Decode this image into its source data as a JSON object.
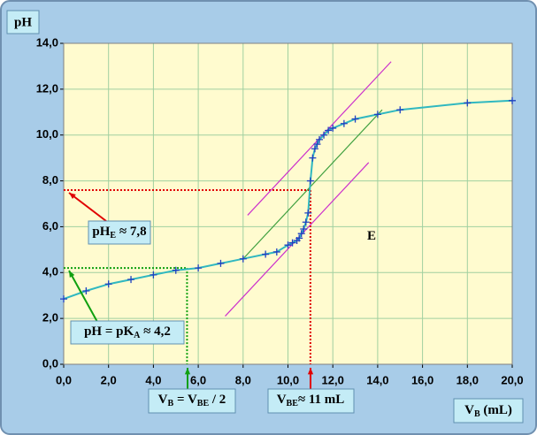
{
  "chart_data": {
    "type": "line",
    "y_label": "pH",
    "x_label": {
      "main": "V",
      "sub": "B",
      "rest": " (mL)"
    },
    "x": [
      0,
      1,
      2,
      3,
      4,
      5,
      6,
      7,
      8,
      9,
      9.5,
      10,
      10.2,
      10.4,
      10.5,
      10.6,
      10.7,
      10.8,
      10.9,
      11,
      11.1,
      11.2,
      11.3,
      11.4,
      11.6,
      11.8,
      12,
      12.5,
      13,
      14,
      15,
      18,
      20
    ],
    "values": [
      2.85,
      3.2,
      3.5,
      3.7,
      3.9,
      4.1,
      4.2,
      4.4,
      4.6,
      4.8,
      4.9,
      5.2,
      5.3,
      5.4,
      5.5,
      5.7,
      5.9,
      6.2,
      6.6,
      8.0,
      9.0,
      9.4,
      9.6,
      9.8,
      10.0,
      10.2,
      10.3,
      10.5,
      10.7,
      10.9,
      11.1,
      11.4,
      11.5
    ],
    "color": "#30b8c0",
    "marker_color": "#2040c0",
    "xlim": [
      0,
      20
    ],
    "ylim": [
      0,
      14
    ],
    "xticks": [
      {
        "value": 0,
        "label": "0,0"
      },
      {
        "value": 2,
        "label": "2,0"
      },
      {
        "value": 4,
        "label": "4,0"
      },
      {
        "value": 6,
        "label": "6,0"
      },
      {
        "value": 8,
        "label": "8,0"
      },
      {
        "value": 10,
        "label": "10,0"
      },
      {
        "value": 12,
        "label": "12,0"
      },
      {
        "value": 14,
        "label": "14,0"
      },
      {
        "value": 16,
        "label": "16,0"
      },
      {
        "value": 18,
        "label": "18,0"
      },
      {
        "value": 20,
        "label": "20,0"
      }
    ],
    "yticks": [
      {
        "value": 0,
        "label": "0,0"
      },
      {
        "value": 2,
        "label": "2,0"
      },
      {
        "value": 4,
        "label": "4,0"
      },
      {
        "value": 6,
        "label": "6,0"
      },
      {
        "value": 8,
        "label": "8,0"
      },
      {
        "value": 10,
        "label": "10,0"
      },
      {
        "value": 12,
        "label": "12,0"
      },
      {
        "value": 14,
        "label": "14,0"
      }
    ],
    "grid": true,
    "lines": [
      {
        "color": "#cc30cc",
        "x": [
          8.2,
          14.6
        ],
        "y": [
          6.5,
          13.2
        ]
      },
      {
        "color": "#cc30cc",
        "x": [
          7.2,
          13.6
        ],
        "y": [
          2.1,
          8.8
        ]
      },
      {
        "color": "#40a040",
        "x": [
          8.0,
          14.2
        ],
        "y": [
          4.6,
          11.1
        ]
      }
    ],
    "guides": [
      {
        "color": "#e00000",
        "x": 11,
        "y": 7.6
      },
      {
        "color": "#10a010",
        "x": 5.5,
        "y": 4.2
      }
    ],
    "annotations": [
      {
        "main": "pH",
        "sub": "E",
        "rest": " ≈ 7,8"
      },
      {
        "main": "pH = pK",
        "sub": "A",
        "rest": " ≈ 4,2"
      },
      {
        "main": "V",
        "sub": "B",
        "rest": " = V",
        "sub2": "BE",
        "rest2": " / 2"
      },
      {
        "main": "V",
        "sub": "BE",
        "rest": "≈ 11 mL"
      },
      {
        "main": "E"
      }
    ]
  }
}
